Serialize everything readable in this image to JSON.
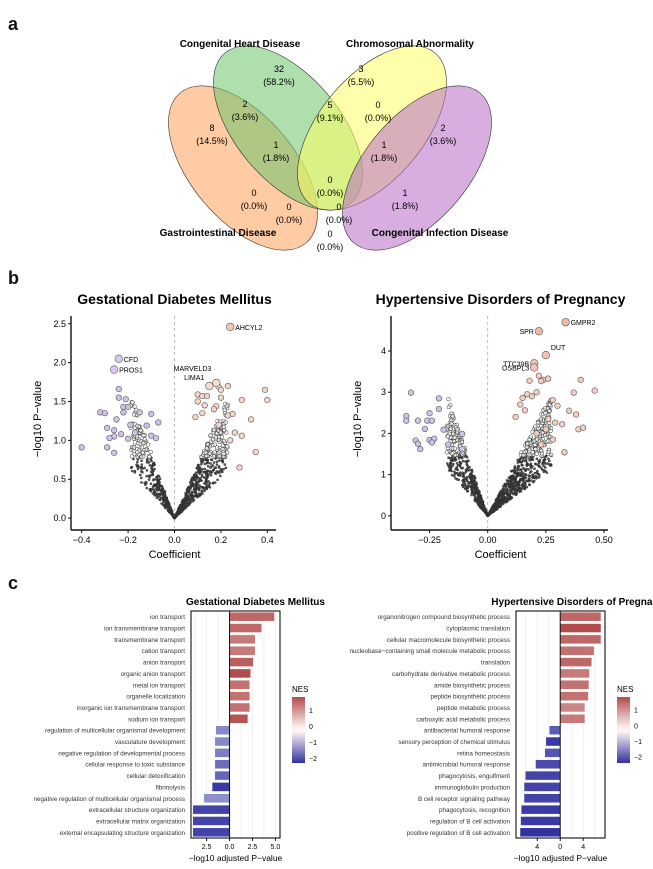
{
  "panels": {
    "a": {
      "letter": "a"
    },
    "b": {
      "letter": "b"
    },
    "c": {
      "letter": "c"
    }
  },
  "chart_data": [
    {
      "type": "venn",
      "panel": "a",
      "sets": [
        {
          "name": "Gastrointestinal Disease",
          "color": "#FFA15A"
        },
        {
          "name": "Congenital Heart Disease",
          "color": "#6CC46A"
        },
        {
          "name": "Chromosomal Abnormality",
          "color": "#FFFF66"
        },
        {
          "name": "Congenital Infection Disease",
          "color": "#B76CC4"
        }
      ],
      "regions": [
        {
          "sets": [
            "Congenital Heart Disease"
          ],
          "count": "32",
          "pct": "(58.2%)"
        },
        {
          "sets": [
            "Chromosomal Abnormality"
          ],
          "count": "3",
          "pct": "(5.5%)"
        },
        {
          "sets": [
            "Gastrointestinal Disease"
          ],
          "count": "8",
          "pct": "(14.5%)"
        },
        {
          "sets": [
            "Congenital Infection Disease"
          ],
          "count": "2",
          "pct": "(3.6%)"
        },
        {
          "sets": [
            "Gastrointestinal Disease",
            "Congenital Heart Disease"
          ],
          "count": "2",
          "pct": "(3.6%)"
        },
        {
          "sets": [
            "Congenital Heart Disease",
            "Chromosomal Abnormality"
          ],
          "count": "5",
          "pct": "(9.1%)"
        },
        {
          "sets": [
            "Chromosomal Abnormality",
            "Congenital Infection Disease"
          ],
          "count": "0",
          "pct": "(0.0%)"
        },
        {
          "sets": [
            "Gastrointestinal Disease",
            "Congenital Heart Disease",
            "Chromosomal Abnormality"
          ],
          "count": "1",
          "pct": "(1.8%)"
        },
        {
          "sets": [
            "Congenital Heart Disease",
            "Chromosomal Abnormality",
            "Congenital Infection Disease"
          ],
          "count": "1",
          "pct": "(1.8%)"
        },
        {
          "sets": [
            "Gastrointestinal Disease",
            "Chromosomal Abnormality"
          ],
          "count": "0",
          "pct": "(0.0%)"
        },
        {
          "sets": [
            "all"
          ],
          "count": "0",
          "pct": "(0.0%)"
        },
        {
          "sets": [
            "Congenital Heart Disease",
            "Congenital Infection Disease"
          ],
          "count": "1",
          "pct": "(1.8%)"
        },
        {
          "sets": [
            "Gastrointestinal Disease",
            "Chromosomal Abnormality",
            "Congenital Infection Disease"
          ],
          "count": "0",
          "pct": "(0.0%)"
        },
        {
          "sets": [
            "Gastrointestinal Disease",
            "Congenital Heart Disease",
            "Congenital Infection Disease"
          ],
          "count": "0",
          "pct": "(0.0%)"
        },
        {
          "sets": [
            "Gastrointestinal Disease",
            "Congenital Infection Disease"
          ],
          "count": "0",
          "pct": "(0.0%)"
        }
      ]
    },
    {
      "type": "scatter",
      "panel": "b",
      "title": "Gestational Diabetes Mellitus",
      "xlabel": "Coefficient",
      "ylabel": "−log10 P−value",
      "xlim": [
        -0.42,
        0.42
      ],
      "ylim": [
        -0.05,
        2.6
      ],
      "xticks": [
        "−0.4",
        "−0.2",
        "0.0",
        "0.2",
        "0.4"
      ],
      "xtick_values": [
        -0.4,
        -0.2,
        0.0,
        0.2,
        0.4
      ],
      "yticks": [
        "0.0",
        "0.5",
        "1.0",
        "1.5",
        "2.0",
        "2.5"
      ],
      "ytick_values": [
        0.0,
        0.5,
        1.0,
        1.5,
        2.0,
        2.5
      ],
      "labeled_points": [
        {
          "label": "AHCYL2",
          "x": 0.24,
          "y": 2.46,
          "color": "#F4C7B5"
        },
        {
          "label": "CFD",
          "x": -0.24,
          "y": 2.05,
          "color": "#D9CBEA"
        },
        {
          "label": "PROS1",
          "x": -0.26,
          "y": 1.91,
          "color": "#D9CBEA"
        },
        {
          "label": "MARVELD3",
          "x": 0.18,
          "y": 1.74,
          "color": "#F4DED4"
        },
        {
          "label": "LIMA1",
          "x": 0.15,
          "y": 1.7,
          "color": "#F4DED4"
        }
      ],
      "highlight_points_left": [
        [
          -0.24,
          1.66
        ],
        [
          -0.24,
          1.55
        ],
        [
          -0.21,
          1.53
        ],
        [
          -0.22,
          1.43
        ],
        [
          -0.2,
          1.43
        ],
        [
          -0.32,
          1.36
        ],
        [
          -0.3,
          1.35
        ],
        [
          -0.22,
          1.36
        ],
        [
          -0.15,
          1.36
        ],
        [
          -0.1,
          1.34
        ],
        [
          -0.25,
          1.27
        ],
        [
          -0.07,
          1.23
        ],
        [
          -0.29,
          1.16
        ],
        [
          -0.26,
          1.13
        ],
        [
          -0.19,
          1.2
        ],
        [
          -0.12,
          1.19
        ],
        [
          -0.23,
          1.08
        ],
        [
          -0.17,
          1.1
        ],
        [
          -0.26,
          1.05
        ],
        [
          -0.28,
          1.03
        ],
        [
          -0.2,
          1.02
        ],
        [
          -0.1,
          1.06
        ],
        [
          -0.4,
          0.91
        ],
        [
          -0.29,
          0.91
        ],
        [
          -0.26,
          0.84
        ],
        [
          -0.08,
          1.03
        ]
      ],
      "highlight_points_right": [
        [
          0.1,
          1.59
        ],
        [
          0.1,
          1.5
        ],
        [
          0.12,
          1.57
        ],
        [
          0.14,
          1.57
        ],
        [
          0.19,
          1.69
        ],
        [
          0.2,
          1.65
        ],
        [
          0.23,
          1.7
        ],
        [
          0.2,
          1.55
        ],
        [
          0.39,
          1.65
        ],
        [
          0.4,
          1.52
        ],
        [
          0.29,
          1.52
        ],
        [
          0.25,
          1.34
        ],
        [
          0.33,
          1.27
        ],
        [
          0.23,
          1.32
        ],
        [
          0.18,
          1.44
        ],
        [
          0.17,
          1.4
        ],
        [
          0.13,
          1.45
        ],
        [
          0.09,
          1.3
        ],
        [
          0.19,
          1.2
        ],
        [
          0.26,
          1.1
        ],
        [
          0.29,
          1.06
        ],
        [
          0.12,
          1.35
        ],
        [
          0.35,
          0.85
        ],
        [
          0.24,
          1.0
        ],
        [
          0.28,
          0.65
        ]
      ],
      "left_color": "#CFC2E6",
      "right_color": "#F4D5C8"
    },
    {
      "type": "scatter",
      "panel": "b",
      "title": "Hypertensive Disorders of Pregnancy",
      "xlabel": "Coefficient",
      "ylabel": "−log10 P−value",
      "xlim": [
        -0.39,
        0.5
      ],
      "ylim": [
        -0.15,
        4.85
      ],
      "xticks": [
        "−0.25",
        "0.00",
        "0.25",
        "0.50"
      ],
      "xtick_values": [
        -0.25,
        0.0,
        0.25,
        0.5
      ],
      "yticks": [
        "0",
        "1",
        "2",
        "3",
        "4"
      ],
      "ytick_values": [
        0,
        1,
        2,
        3,
        4
      ],
      "labeled_points": [
        {
          "label": "GMPR2",
          "x": 0.335,
          "y": 4.7,
          "color": "#F4B9A5"
        },
        {
          "label": "SPR",
          "x": 0.22,
          "y": 4.48,
          "color": "#F4B9A5"
        },
        {
          "label": "DUT",
          "x": 0.25,
          "y": 3.9,
          "color": "#F4C3B2"
        },
        {
          "label": "TTC39B",
          "x": 0.2,
          "y": 3.7,
          "color": "#F4C3B2"
        },
        {
          "label": "OSBPL3",
          "x": 0.2,
          "y": 3.6,
          "color": "#F4C3B2"
        }
      ],
      "highlight_points_left": [
        [
          -0.33,
          2.99
        ],
        [
          -0.21,
          2.85
        ],
        [
          -0.21,
          2.59
        ],
        [
          -0.25,
          2.49
        ],
        [
          -0.35,
          2.42
        ],
        [
          -0.35,
          2.31
        ],
        [
          -0.3,
          2.31
        ],
        [
          -0.26,
          2.31
        ],
        [
          -0.24,
          2.31
        ],
        [
          -0.27,
          2.11
        ],
        [
          -0.18,
          2.1
        ],
        [
          -0.19,
          2.09
        ],
        [
          -0.11,
          1.99
        ],
        [
          -0.31,
          1.83
        ],
        [
          -0.25,
          1.84
        ],
        [
          -0.23,
          1.87
        ],
        [
          -0.3,
          1.75
        ],
        [
          -0.24,
          1.78
        ],
        [
          -0.17,
          1.73
        ],
        [
          -0.29,
          1.62
        ],
        [
          -0.11,
          1.62
        ]
      ],
      "highlight_points_right": [
        [
          0.22,
          3.4
        ],
        [
          0.24,
          3.3
        ],
        [
          0.26,
          3.33
        ],
        [
          0.23,
          3.27
        ],
        [
          0.18,
          3.28
        ],
        [
          0.4,
          3.3
        ],
        [
          0.46,
          3.04
        ],
        [
          0.37,
          2.99
        ],
        [
          0.21,
          3.0
        ],
        [
          0.17,
          2.95
        ],
        [
          0.19,
          2.9
        ],
        [
          0.28,
          2.81
        ],
        [
          0.3,
          2.67
        ],
        [
          0.35,
          2.55
        ],
        [
          0.38,
          2.46
        ],
        [
          0.15,
          2.86
        ],
        [
          0.14,
          2.7
        ],
        [
          0.16,
          2.56
        ],
        [
          0.26,
          2.35
        ],
        [
          0.29,
          2.26
        ],
        [
          0.32,
          2.22
        ],
        [
          0.39,
          2.1
        ],
        [
          0.41,
          2.14
        ],
        [
          0.25,
          2.1
        ],
        [
          0.21,
          2.0
        ],
        [
          0.28,
          1.85
        ],
        [
          0.23,
          1.73
        ],
        [
          0.33,
          1.54
        ],
        [
          0.12,
          2.4
        ]
      ],
      "left_color": "#CFC2E6",
      "right_color": "#F4CDBF"
    },
    {
      "type": "bar",
      "orientation": "horizontal",
      "panel": "c",
      "title": "Gestational Diabetes Mellitus",
      "xlabel": "−log10 adjusted P−value",
      "xticks": [
        "2.5",
        "0.0",
        "2.5",
        "5.0"
      ],
      "xtick_values": [
        -2.5,
        0,
        2.5,
        5.0
      ],
      "xlim": [
        -4.2,
        5.5
      ],
      "legend": {
        "title": "NES",
        "ticks": [
          "1",
          "0",
          "−1",
          "−2"
        ],
        "tick_values": [
          1,
          0,
          -1,
          -2
        ],
        "range": [
          -2.3,
          1.8
        ],
        "placement": "right"
      },
      "categories": [
        "ion transport",
        "ion transmembrane transport",
        "transmembrane transport",
        "cation transport",
        "anion transport",
        "organic anion transport",
        "metal ion transport",
        "organelle localization",
        "inorganic ion transmembrane transport",
        "sodium ion transport",
        "regulation of multicellular organismal development",
        "vasculature development",
        "negative regulation of developmental process",
        "cellular response to toxic substance",
        "cellular detoxification",
        "fibrinolysis",
        "negative regulation of multicellular organismal process",
        "extracellular structure organization",
        "extracellular matrix organization",
        "external encapsulating structure organization"
      ],
      "values": [
        4.9,
        3.5,
        2.8,
        2.8,
        2.6,
        2.3,
        2.2,
        2.2,
        2.2,
        2.0,
        -1.5,
        -1.6,
        -1.6,
        -1.6,
        -1.6,
        -1.9,
        -2.8,
        -4.0,
        -4.0,
        -4.0
      ],
      "nes": [
        1.5,
        1.5,
        1.3,
        1.3,
        1.6,
        1.8,
        1.4,
        1.4,
        1.4,
        1.7,
        -1.3,
        -1.3,
        -1.4,
        -1.6,
        -1.7,
        -2.2,
        -1.2,
        -2.1,
        -2.1,
        -2.1
      ]
    },
    {
      "type": "bar",
      "orientation": "horizontal",
      "panel": "c",
      "title": "Hypertensive Disorders of Pregnancy",
      "xlabel": "−log10 adjusted P−value",
      "xticks": [
        "4",
        "0",
        "4"
      ],
      "xtick_values": [
        -4,
        0,
        4
      ],
      "xlim": [
        -7.7,
        7.8
      ],
      "legend": {
        "title": "NES",
        "ticks": [
          "1",
          "0",
          "−1",
          "−2"
        ],
        "tick_values": [
          1,
          0,
          -1,
          -2
        ],
        "range": [
          -2.4,
          1.8
        ],
        "placement": "right"
      },
      "categories": [
        "organonitrogen compound biosynthetic process",
        "cytoplasmic translation",
        "cellular macromolecule biosynthetic process",
        "nucleobase−containing small molecule metabolic process",
        "translation",
        "carbohydrate derivative metabolic process",
        "amide biosynthetic process",
        "peptide biosynthetic process",
        "peptide metabolic process",
        "carboxylic acid metabolic process",
        "antibacterial humoral response",
        "sensory perception of chemical stimulus",
        "retina homeostasis",
        "antimicrobial humoral response",
        "phagocytosis, engulfment",
        "immunoglobulin production",
        "B cell receptor signaling pathway",
        "phagocytosis, recognition",
        "regulation of B cell activation",
        "positive regulation of B cell activation"
      ],
      "values": [
        7.1,
        7.1,
        7.1,
        5.9,
        5.5,
        5.1,
        5.0,
        4.9,
        4.3,
        4.3,
        -1.9,
        -2.5,
        -2.7,
        -4.3,
        -6.1,
        -6.3,
        -6.3,
        -6.8,
        -6.9,
        -7.0
      ],
      "nes": [
        1.5,
        1.8,
        1.5,
        1.4,
        1.5,
        1.3,
        1.4,
        1.4,
        1.2,
        1.3,
        -1.8,
        -2.2,
        -1.9,
        -2.0,
        -2.1,
        -2.1,
        -2.1,
        -2.2,
        -2.2,
        -2.3
      ]
    }
  ]
}
